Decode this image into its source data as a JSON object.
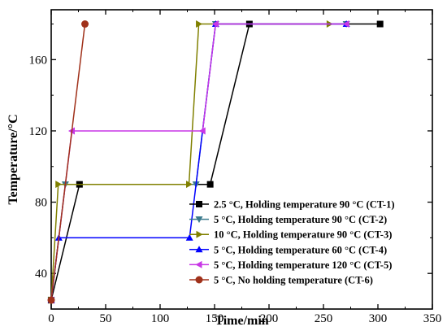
{
  "chart_data": {
    "type": "line",
    "title": "",
    "xlabel": "Time/min",
    "ylabel": "Temperature/°C",
    "xlim": [
      0,
      350
    ],
    "ylim": [
      20,
      188
    ],
    "xticks": [
      0,
      50,
      100,
      150,
      200,
      250,
      300,
      350
    ],
    "yticks": [
      40,
      80,
      120,
      160
    ],
    "grid": false,
    "legend_position": "lower-right",
    "series": [
      {
        "name": "2.5 °C, Holding temperature 90 °C (CT-1)",
        "color": "#000000",
        "marker": "square",
        "x": [
          0,
          26,
          146,
          182,
          302
        ],
        "y": [
          25,
          90,
          90,
          180,
          180
        ]
      },
      {
        "name": "5 °C, Holding temperature 90 °C (CT-2)",
        "color": "#3a7a8c",
        "marker": "triangle-down",
        "x": [
          0,
          13,
          133,
          151,
          271
        ],
        "y": [
          25,
          90,
          90,
          180,
          180
        ]
      },
      {
        "name": "10 °C, Holding temperature 90 °C (CT-3)",
        "color": "#808000",
        "marker": "triangle-right",
        "x": [
          0,
          6.5,
          126.5,
          135.5,
          255.5
        ],
        "y": [
          25,
          90,
          90,
          180,
          180
        ]
      },
      {
        "name": "5 °C, Holding temperature 60 °C (CT-4)",
        "color": "#0000ff",
        "marker": "triangle-up",
        "x": [
          0,
          7,
          127,
          151,
          271
        ],
        "y": [
          25,
          60,
          60,
          180,
          180
        ]
      },
      {
        "name": "5 °C, Holding temperature 120 °C (CT-5)",
        "color": "#c837e6",
        "marker": "triangle-left",
        "x": [
          0,
          19,
          139,
          151,
          271
        ],
        "y": [
          25,
          120,
          120,
          180,
          180
        ]
      },
      {
        "name": "5 °C, No holding temperature (CT-6)",
        "color": "#a0311a",
        "marker": "circle",
        "x": [
          0,
          31
        ],
        "y": [
          25,
          180
        ]
      }
    ]
  }
}
